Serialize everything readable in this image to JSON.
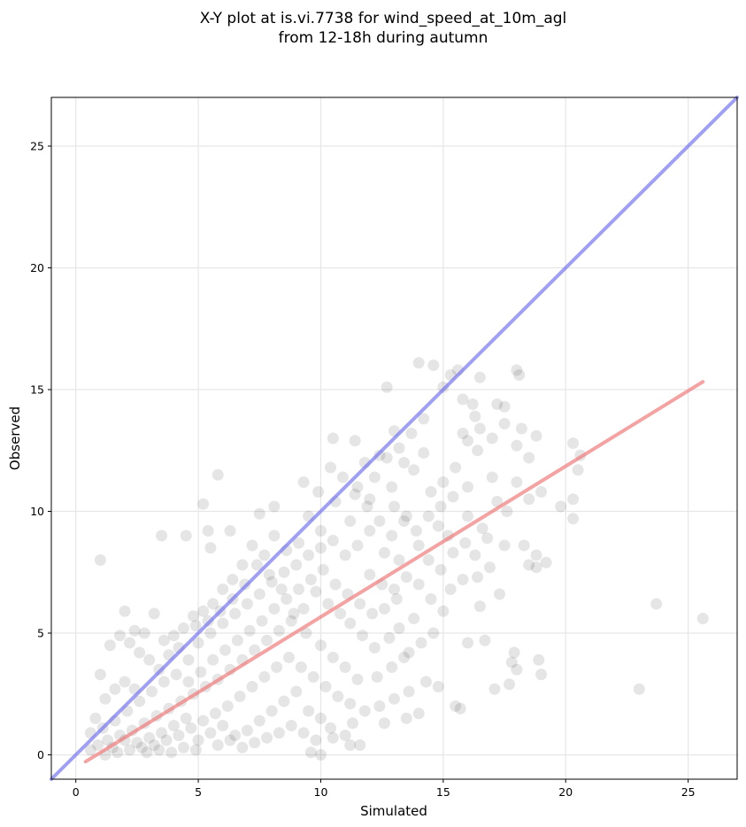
{
  "chart_data": {
    "type": "scatter",
    "title_line1": "X-Y plot at is.vi.7738 for wind_speed_at_10m_agl",
    "title_line2": "from 12-18h during autumn",
    "xlabel": "Simulated",
    "ylabel": "Observed",
    "xlim": [
      -1,
      27
    ],
    "ylim": [
      -1,
      27
    ],
    "xticks": [
      0,
      5,
      10,
      15,
      20,
      25
    ],
    "yticks": [
      0,
      5,
      10,
      15,
      20,
      25
    ],
    "grid": true,
    "colors": {
      "points": "#000000",
      "identity_line": "#6b6bf0",
      "fit_line": "#f07a7a",
      "grid": "#e6e6e6"
    },
    "identity_line": {
      "x": [
        -1,
        27
      ],
      "y": [
        -1,
        27
      ]
    },
    "fit_line": {
      "x": [
        0.4,
        25.6
      ],
      "y": [
        -0.28,
        15.32
      ]
    },
    "series": [
      {
        "points": [
          [
            1.0,
            8.0
          ],
          [
            3.5,
            9.0
          ],
          [
            4.5,
            9.0
          ],
          [
            5.2,
            10.3
          ],
          [
            5.8,
            11.5
          ],
          [
            5.5,
            8.5
          ],
          [
            5.4,
            9.2
          ],
          [
            6.3,
            9.2
          ],
          [
            7.5,
            9.9
          ],
          [
            8.1,
            10.2
          ],
          [
            9.3,
            11.2
          ],
          [
            10.5,
            13.0
          ],
          [
            11.4,
            12.9
          ],
          [
            12.7,
            15.1
          ],
          [
            13.0,
            13.3
          ],
          [
            14.0,
            16.1
          ],
          [
            14.6,
            16.0
          ],
          [
            15.0,
            15.1
          ],
          [
            15.3,
            15.6
          ],
          [
            15.6,
            15.8
          ],
          [
            16.2,
            14.4
          ],
          [
            16.5,
            15.5
          ],
          [
            17.2,
            14.4
          ],
          [
            17.5,
            14.3
          ],
          [
            18.0,
            15.8
          ],
          [
            18.1,
            15.6
          ],
          [
            16.3,
            13.9
          ],
          [
            16.5,
            13.4
          ],
          [
            16.0,
            12.9
          ],
          [
            15.8,
            13.2
          ],
          [
            17.0,
            13.0
          ],
          [
            17.5,
            13.6
          ],
          [
            18.2,
            13.4
          ],
          [
            18.5,
            12.2
          ],
          [
            18.8,
            13.1
          ],
          [
            18.0,
            12.7
          ],
          [
            17.0,
            11.4
          ],
          [
            16.4,
            12.5
          ],
          [
            17.2,
            10.4
          ],
          [
            17.6,
            10.0
          ],
          [
            18.0,
            11.2
          ],
          [
            18.5,
            10.5
          ],
          [
            19.0,
            10.8
          ],
          [
            19.8,
            10.2
          ],
          [
            20.3,
            12.8
          ],
          [
            20.6,
            12.3
          ],
          [
            20.5,
            11.7
          ],
          [
            20.3,
            10.5
          ],
          [
            20.3,
            9.7
          ],
          [
            18.3,
            8.6
          ],
          [
            18.5,
            7.8
          ],
          [
            18.8,
            7.7
          ],
          [
            19.2,
            7.9
          ],
          [
            18.8,
            8.2
          ],
          [
            17.5,
            8.6
          ],
          [
            16.8,
            8.9
          ],
          [
            17.3,
            6.6
          ],
          [
            16.5,
            6.1
          ],
          [
            15.8,
            7.2
          ],
          [
            15.3,
            6.8
          ],
          [
            15.0,
            5.9
          ],
          [
            16.0,
            4.6
          ],
          [
            16.7,
            4.7
          ],
          [
            17.1,
            2.7
          ],
          [
            17.7,
            2.9
          ],
          [
            17.8,
            3.8
          ],
          [
            17.9,
            4.2
          ],
          [
            18.0,
            3.5
          ],
          [
            18.9,
            3.9
          ],
          [
            19.0,
            3.3
          ],
          [
            15.5,
            2.0
          ],
          [
            15.7,
            1.9
          ],
          [
            14.8,
            2.8
          ],
          [
            14.0,
            1.7
          ],
          [
            13.5,
            1.5
          ],
          [
            12.6,
            1.3
          ],
          [
            11.3,
            1.3
          ],
          [
            11.0,
            0.8
          ],
          [
            10.5,
            0.7
          ],
          [
            10.0,
            0.0
          ],
          [
            9.6,
            0.1
          ],
          [
            11.2,
            0.4
          ],
          [
            11.6,
            0.4
          ],
          [
            23.0,
            2.7
          ],
          [
            23.7,
            6.2
          ],
          [
            25.6,
            5.6
          ],
          [
            12.9,
            11.0
          ],
          [
            13.8,
            11.7
          ],
          [
            14.2,
            12.4
          ],
          [
            13.4,
            12.0
          ],
          [
            12.4,
            12.3
          ],
          [
            11.8,
            12.0
          ],
          [
            11.5,
            11.0
          ],
          [
            12.0,
            10.5
          ],
          [
            13.0,
            10.2
          ],
          [
            13.5,
            9.8
          ],
          [
            14.5,
            10.8
          ],
          [
            15.0,
            11.2
          ],
          [
            15.5,
            11.8
          ],
          [
            14.8,
            9.4
          ],
          [
            15.2,
            9.0
          ],
          [
            16.0,
            9.8
          ],
          [
            16.3,
            8.2
          ],
          [
            16.6,
            9.3
          ],
          [
            14.0,
            8.6
          ],
          [
            13.2,
            8.0
          ],
          [
            12.6,
            8.3
          ],
          [
            12.0,
            9.2
          ],
          [
            11.2,
            9.6
          ],
          [
            10.6,
            10.4
          ],
          [
            10.0,
            9.2
          ],
          [
            9.5,
            9.8
          ],
          [
            9.1,
            8.7
          ],
          [
            8.6,
            8.4
          ],
          [
            8.1,
            9.0
          ],
          [
            7.7,
            8.2
          ],
          [
            7.2,
            8.6
          ],
          [
            6.8,
            7.8
          ],
          [
            6.4,
            7.2
          ],
          [
            6.0,
            6.8
          ],
          [
            5.6,
            6.2
          ],
          [
            5.2,
            5.9
          ],
          [
            4.8,
            5.7
          ],
          [
            4.4,
            5.2
          ],
          [
            4.0,
            4.9
          ],
          [
            3.6,
            4.7
          ],
          [
            3.2,
            5.8
          ],
          [
            2.8,
            5.0
          ],
          [
            2.4,
            5.1
          ],
          [
            2.0,
            5.9
          ],
          [
            1.8,
            4.9
          ],
          [
            1.4,
            4.5
          ],
          [
            1.0,
            3.3
          ],
          [
            2.2,
            4.6
          ],
          [
            2.6,
            4.2
          ],
          [
            3.0,
            3.9
          ],
          [
            3.4,
            3.5
          ],
          [
            3.8,
            4.1
          ],
          [
            4.2,
            4.4
          ],
          [
            4.6,
            3.9
          ],
          [
            5.0,
            4.6
          ],
          [
            5.5,
            5.0
          ],
          [
            6.0,
            5.4
          ],
          [
            6.5,
            5.8
          ],
          [
            7.0,
            6.2
          ],
          [
            7.5,
            6.6
          ],
          [
            8.0,
            7.1
          ],
          [
            8.5,
            7.5
          ],
          [
            9.0,
            7.8
          ],
          [
            9.5,
            8.2
          ],
          [
            10.0,
            8.5
          ],
          [
            10.5,
            8.8
          ],
          [
            11.0,
            8.2
          ],
          [
            11.5,
            8.6
          ],
          [
            12.0,
            7.4
          ],
          [
            12.5,
            7.0
          ],
          [
            13.0,
            6.8
          ],
          [
            13.5,
            7.3
          ],
          [
            14.0,
            7.0
          ],
          [
            14.5,
            6.4
          ],
          [
            13.8,
            5.6
          ],
          [
            13.2,
            5.2
          ],
          [
            12.8,
            4.8
          ],
          [
            12.2,
            4.4
          ],
          [
            11.7,
            4.9
          ],
          [
            11.2,
            5.4
          ],
          [
            10.8,
            5.8
          ],
          [
            10.3,
            6.2
          ],
          [
            9.8,
            6.7
          ],
          [
            9.3,
            6.0
          ],
          [
            8.8,
            5.5
          ],
          [
            8.3,
            5.1
          ],
          [
            7.8,
            4.7
          ],
          [
            7.3,
            4.3
          ],
          [
            6.8,
            3.9
          ],
          [
            6.3,
            3.5
          ],
          [
            5.8,
            3.1
          ],
          [
            5.3,
            2.8
          ],
          [
            4.8,
            2.5
          ],
          [
            4.3,
            2.2
          ],
          [
            3.8,
            1.9
          ],
          [
            3.3,
            1.6
          ],
          [
            2.8,
            1.3
          ],
          [
            2.3,
            1.0
          ],
          [
            1.8,
            0.8
          ],
          [
            1.3,
            0.6
          ],
          [
            0.9,
            0.4
          ],
          [
            0.6,
            0.2
          ],
          [
            1.1,
            1.1
          ],
          [
            1.6,
            1.4
          ],
          [
            2.1,
            1.8
          ],
          [
            2.6,
            2.2
          ],
          [
            3.1,
            2.6
          ],
          [
            3.6,
            3.0
          ],
          [
            4.1,
            3.3
          ],
          [
            4.6,
            3.0
          ],
          [
            5.1,
            3.4
          ],
          [
            5.6,
            3.9
          ],
          [
            6.1,
            4.3
          ],
          [
            6.6,
            4.7
          ],
          [
            7.1,
            5.1
          ],
          [
            7.6,
            5.5
          ],
          [
            8.1,
            6.0
          ],
          [
            8.6,
            6.4
          ],
          [
            9.1,
            6.8
          ],
          [
            9.6,
            7.2
          ],
          [
            10.1,
            7.6
          ],
          [
            10.6,
            7.0
          ],
          [
            11.1,
            6.6
          ],
          [
            11.6,
            6.2
          ],
          [
            12.1,
            5.8
          ],
          [
            12.6,
            6.0
          ],
          [
            13.1,
            6.4
          ],
          [
            13.6,
            4.2
          ],
          [
            14.1,
            4.6
          ],
          [
            14.6,
            5.0
          ],
          [
            14.3,
            3.0
          ],
          [
            13.6,
            2.6
          ],
          [
            13.0,
            2.3
          ],
          [
            12.4,
            2.0
          ],
          [
            11.8,
            1.8
          ],
          [
            11.2,
            2.1
          ],
          [
            10.7,
            2.4
          ],
          [
            10.2,
            2.8
          ],
          [
            9.7,
            3.2
          ],
          [
            9.2,
            3.6
          ],
          [
            8.7,
            4.0
          ],
          [
            8.2,
            3.6
          ],
          [
            7.7,
            3.2
          ],
          [
            7.2,
            2.8
          ],
          [
            6.7,
            2.4
          ],
          [
            6.2,
            2.0
          ],
          [
            5.7,
            1.7
          ],
          [
            5.2,
            1.4
          ],
          [
            4.7,
            1.1
          ],
          [
            4.2,
            0.8
          ],
          [
            3.7,
            0.6
          ],
          [
            3.2,
            0.4
          ],
          [
            2.7,
            0.3
          ],
          [
            2.2,
            0.2
          ],
          [
            1.7,
            0.1
          ],
          [
            1.2,
            0.0
          ],
          [
            2.5,
            0.5
          ],
          [
            3.0,
            0.7
          ],
          [
            3.5,
            0.9
          ],
          [
            4.0,
            1.2
          ],
          [
            4.5,
            1.5
          ],
          [
            5.0,
            0.6
          ],
          [
            5.5,
            0.9
          ],
          [
            6.0,
            1.2
          ],
          [
            6.5,
            0.8
          ],
          [
            7.0,
            1.0
          ],
          [
            7.5,
            1.4
          ],
          [
            8.0,
            1.8
          ],
          [
            8.5,
            2.2
          ],
          [
            9.0,
            2.6
          ],
          [
            9.5,
            1.8
          ],
          [
            10.0,
            1.5
          ],
          [
            10.4,
            1.1
          ],
          [
            3.9,
            0.1
          ],
          [
            4.4,
            0.3
          ],
          [
            4.9,
            0.2
          ],
          [
            2.9,
            0.1
          ],
          [
            3.4,
            0.2
          ],
          [
            1.5,
            0.3
          ],
          [
            2.0,
            0.6
          ],
          [
            6.8,
            0.3
          ],
          [
            7.3,
            0.5
          ],
          [
            7.8,
            0.7
          ],
          [
            8.3,
            0.9
          ],
          [
            8.8,
            1.2
          ],
          [
            5.8,
            0.4
          ],
          [
            6.3,
            0.6
          ],
          [
            0.8,
            1.5
          ],
          [
            1.2,
            2.3
          ],
          [
            1.6,
            2.7
          ],
          [
            2.0,
            3.0
          ],
          [
            2.4,
            2.7
          ],
          [
            0.6,
            0.9
          ],
          [
            9.3,
            0.9
          ],
          [
            9.8,
            0.6
          ],
          [
            12.3,
            3.2
          ],
          [
            12.9,
            3.6
          ],
          [
            13.4,
            4.0
          ],
          [
            11.5,
            3.1
          ],
          [
            11.0,
            3.6
          ],
          [
            10.5,
            4.0
          ],
          [
            10.0,
            4.5
          ],
          [
            9.4,
            5.0
          ],
          [
            8.9,
            5.8
          ],
          [
            8.4,
            6.8
          ],
          [
            7.9,
            7.4
          ],
          [
            7.4,
            7.8
          ],
          [
            6.9,
            7.0
          ],
          [
            6.4,
            6.4
          ],
          [
            5.9,
            5.9
          ],
          [
            5.4,
            5.5
          ],
          [
            4.9,
            5.3
          ],
          [
            15.4,
            8.3
          ],
          [
            15.9,
            8.7
          ],
          [
            16.4,
            7.3
          ],
          [
            16.9,
            7.7
          ],
          [
            14.9,
            7.6
          ],
          [
            14.4,
            8.0
          ],
          [
            13.9,
            9.2
          ],
          [
            13.4,
            9.6
          ],
          [
            12.9,
            9.0
          ],
          [
            12.4,
            9.6
          ],
          [
            11.9,
            10.2
          ],
          [
            11.4,
            10.7
          ],
          [
            10.9,
            11.4
          ],
          [
            10.4,
            11.8
          ],
          [
            9.9,
            10.8
          ],
          [
            14.2,
            13.8
          ],
          [
            13.7,
            13.2
          ],
          [
            13.2,
            12.6
          ],
          [
            12.7,
            12.2
          ],
          [
            12.2,
            11.4
          ],
          [
            15.8,
            14.6
          ],
          [
            16.0,
            11.0
          ],
          [
            15.4,
            10.6
          ],
          [
            14.9,
            10.2
          ],
          [
            14.4,
            9.8
          ]
        ]
      }
    ]
  }
}
